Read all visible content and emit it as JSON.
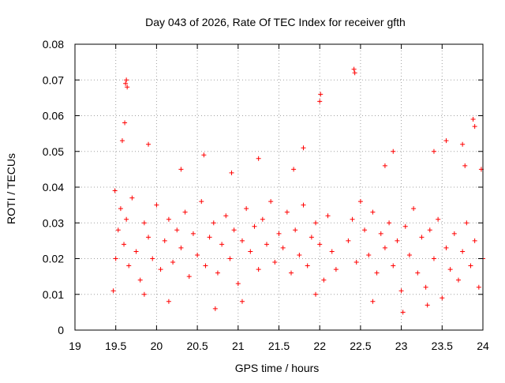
{
  "chart_data": {
    "type": "scatter",
    "title": "Day 043 of 2026, Rate Of TEC Index for receiver gfth",
    "xlabel": "GPS time / hours",
    "ylabel": "ROTI / TECUs",
    "xlim": [
      19,
      24
    ],
    "ylim": [
      0,
      0.08
    ],
    "x_ticks": [
      19,
      19.5,
      20,
      20.5,
      21,
      21.5,
      22,
      22.5,
      23,
      23.5,
      24
    ],
    "x_tick_labels": [
      "19",
      "19.5",
      "20",
      "20.5",
      "21",
      "21.5",
      "22",
      "22.5",
      "23",
      "23.5",
      "24"
    ],
    "y_ticks": [
      0,
      0.01,
      0.02,
      0.03,
      0.04,
      0.05,
      0.06,
      0.07,
      0.08
    ],
    "y_tick_labels": [
      "0",
      "0.01",
      "0.02",
      "0.03",
      "0.04",
      "0.05",
      "0.06",
      "0.07",
      "0.08"
    ],
    "grid": true,
    "marker": "+",
    "marker_color": "#ff0000",
    "series": [
      {
        "name": "ROTI",
        "x": [
          19.47,
          19.5,
          19.53,
          19.56,
          19.6,
          19.63,
          19.66,
          19.7,
          19.75,
          19.8,
          19.85,
          19.9,
          19.95,
          20.0,
          20.05,
          20.1,
          20.15,
          20.2,
          20.25,
          20.3,
          20.35,
          20.4,
          20.45,
          20.5,
          20.55,
          20.6,
          20.65,
          20.7,
          20.75,
          20.8,
          20.85,
          20.9,
          20.95,
          21.0,
          21.05,
          21.1,
          21.15,
          21.2,
          21.25,
          21.3,
          21.35,
          21.4,
          21.45,
          21.5,
          21.55,
          21.6,
          21.65,
          21.7,
          21.75,
          21.8,
          21.85,
          21.9,
          21.95,
          22.0,
          22.05,
          22.1,
          22.15,
          22.2,
          22.35,
          22.4,
          22.45,
          22.5,
          22.55,
          22.6,
          22.65,
          22.7,
          22.75,
          22.8,
          22.85,
          22.9,
          22.95,
          23.0,
          23.05,
          23.1,
          23.15,
          23.2,
          23.25,
          23.3,
          23.35,
          23.4,
          23.45,
          23.5,
          23.55,
          23.6,
          23.65,
          23.7,
          23.75,
          23.8,
          23.85,
          23.9,
          23.95,
          24.0,
          19.62,
          19.63,
          19.64,
          22.42,
          22.43,
          22.01,
          22.0,
          23.88,
          23.9,
          20.58,
          20.72,
          21.25,
          23.02,
          23.55,
          19.9,
          20.3,
          21.8,
          22.9,
          23.4,
          23.75,
          19.61,
          19.58,
          20.92,
          21.68,
          22.8,
          23.78,
          19.49,
          19.85,
          20.15,
          21.05,
          21.95,
          22.65,
          23.32,
          23.98
        ],
        "y": [
          0.011,
          0.02,
          0.028,
          0.034,
          0.024,
          0.031,
          0.018,
          0.037,
          0.022,
          0.014,
          0.03,
          0.026,
          0.02,
          0.035,
          0.017,
          0.025,
          0.031,
          0.019,
          0.028,
          0.023,
          0.033,
          0.015,
          0.027,
          0.021,
          0.036,
          0.018,
          0.026,
          0.03,
          0.016,
          0.024,
          0.032,
          0.02,
          0.028,
          0.013,
          0.025,
          0.034,
          0.022,
          0.029,
          0.017,
          0.031,
          0.024,
          0.036,
          0.019,
          0.027,
          0.023,
          0.033,
          0.016,
          0.028,
          0.021,
          0.035,
          0.018,
          0.026,
          0.03,
          0.024,
          0.014,
          0.032,
          0.022,
          0.017,
          0.025,
          0.031,
          0.019,
          0.036,
          0.028,
          0.021,
          0.033,
          0.016,
          0.027,
          0.023,
          0.03,
          0.018,
          0.025,
          0.011,
          0.029,
          0.021,
          0.034,
          0.016,
          0.026,
          0.012,
          0.028,
          0.02,
          0.031,
          0.009,
          0.023,
          0.017,
          0.027,
          0.014,
          0.022,
          0.03,
          0.018,
          0.025,
          0.012,
          0.02,
          0.069,
          0.07,
          0.068,
          0.073,
          0.072,
          0.066,
          0.064,
          0.059,
          0.057,
          0.049,
          0.006,
          0.048,
          0.005,
          0.053,
          0.052,
          0.045,
          0.051,
          0.05,
          0.05,
          0.052,
          0.058,
          0.053,
          0.044,
          0.045,
          0.046,
          0.046,
          0.039,
          0.01,
          0.008,
          0.008,
          0.01,
          0.008,
          0.007,
          0.045
        ]
      }
    ]
  }
}
